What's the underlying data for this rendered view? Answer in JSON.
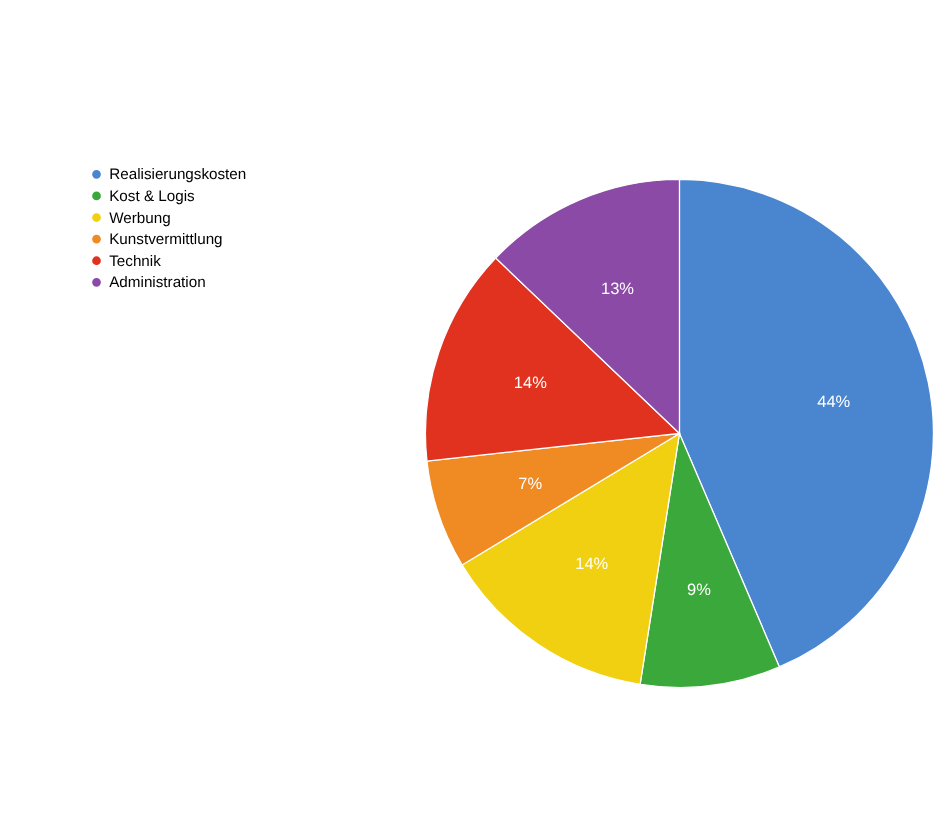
{
  "chart_data": {
    "type": "pie",
    "categories": [
      "Realisierungskosten",
      "Kost & Logis",
      "Werbung",
      "Kunstvermittlung",
      "Technik",
      "Administration"
    ],
    "values": [
      44,
      9,
      14,
      7,
      14,
      13
    ],
    "colors": [
      "#4a86d0",
      "#3aa83a",
      "#f0d010",
      "#f08a22",
      "#e0321e",
      "#8a4aa6"
    ],
    "value_labels": [
      "44%",
      "9%",
      "14%",
      "7%",
      "14%",
      "13%"
    ],
    "legend": "top left"
  }
}
